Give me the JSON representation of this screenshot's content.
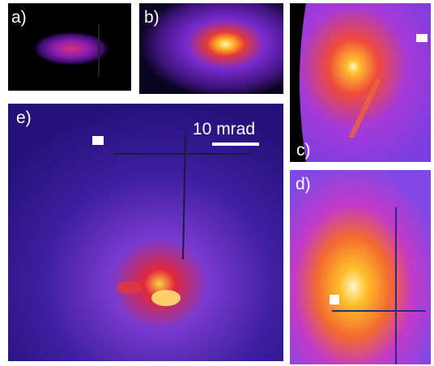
{
  "panels": [
    {
      "label": "a)"
    },
    {
      "label": "b)"
    },
    {
      "label": "c)"
    },
    {
      "label": "d)"
    },
    {
      "label": "e)"
    }
  ],
  "scale_bar": {
    "label": "10 mrad"
  }
}
